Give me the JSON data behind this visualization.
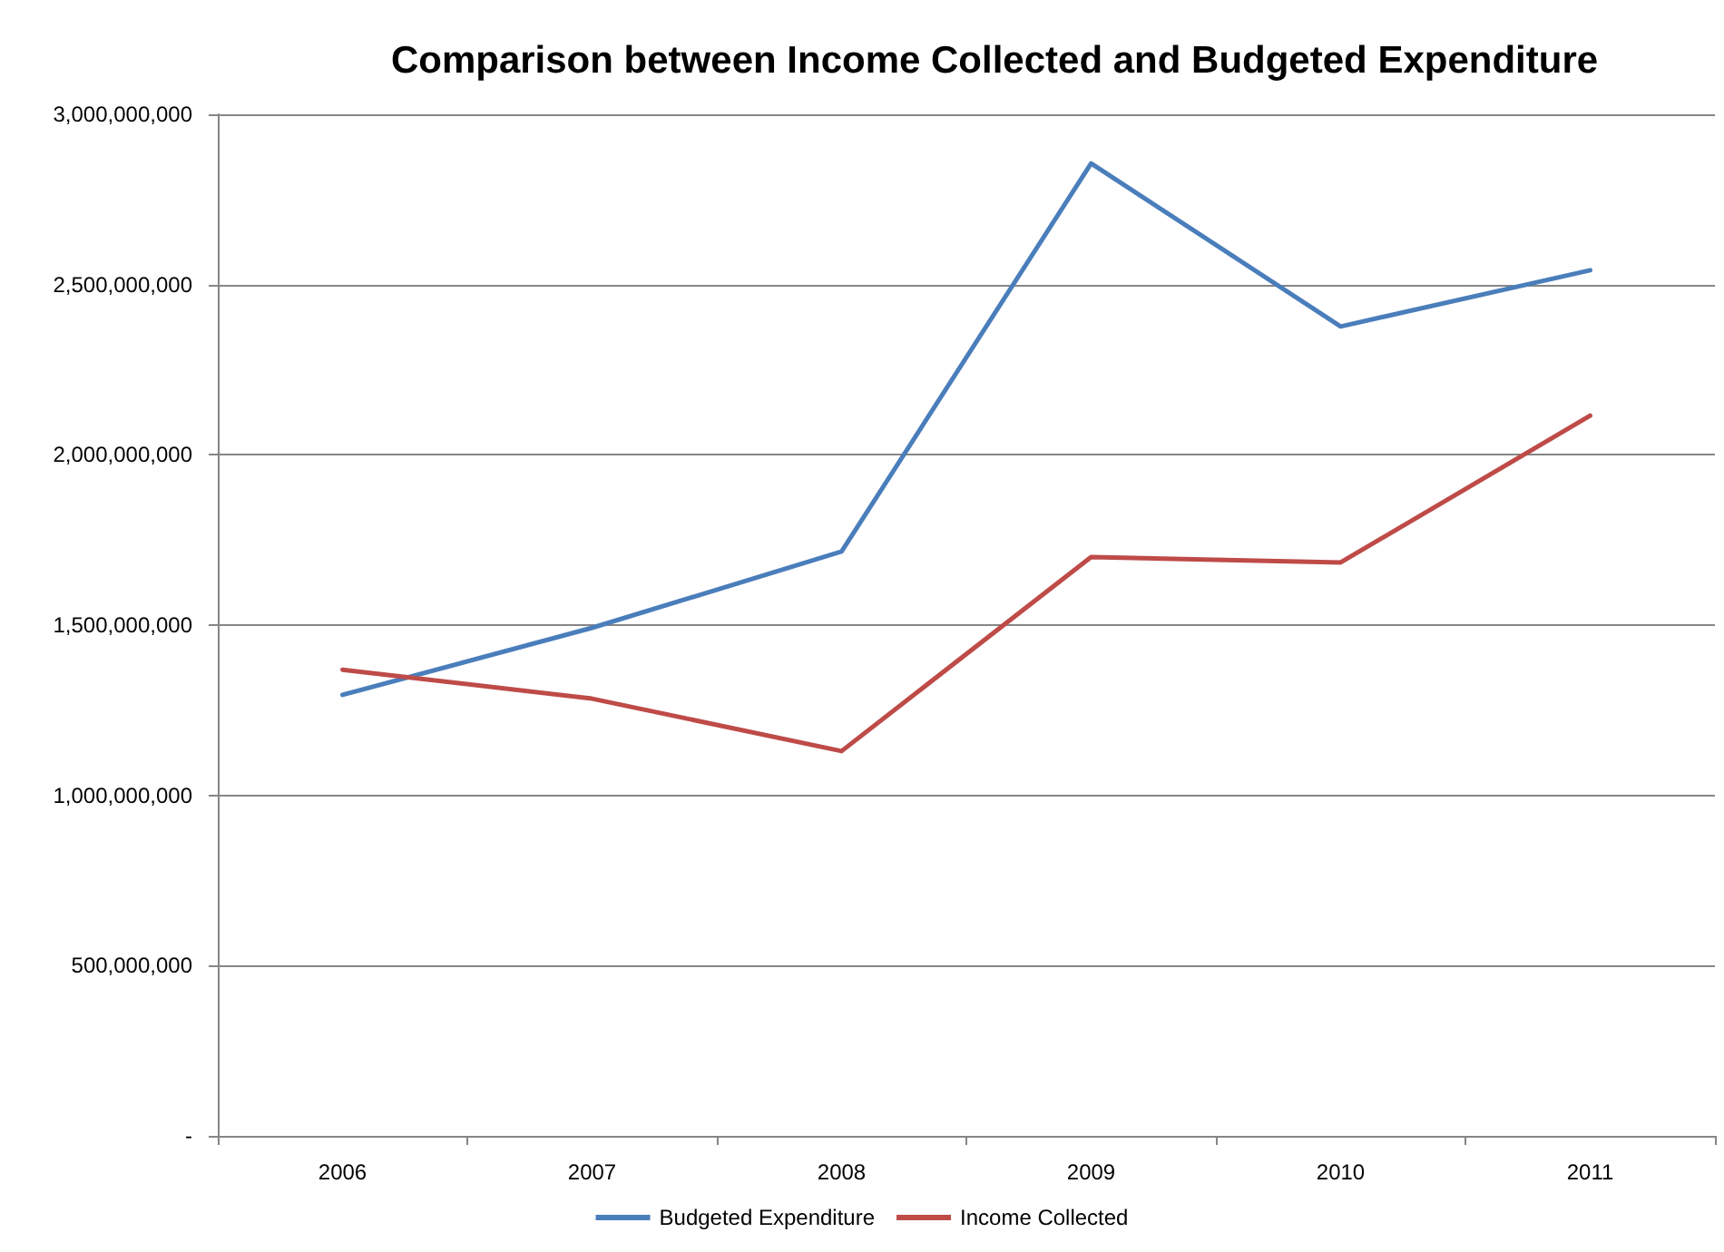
{
  "chart_data": {
    "type": "line",
    "title": "Comparison between Income Collected and Budgeted Expenditure",
    "categories": [
      "2006",
      "2007",
      "2008",
      "2009",
      "2010",
      "2011"
    ],
    "series": [
      {
        "name": "Budgeted Expenditure",
        "color": "#4a7ebb",
        "values": [
          1295000000,
          1492000000,
          1716000000,
          2856000000,
          2377000000,
          2542000000
        ]
      },
      {
        "name": "Income Collected",
        "color": "#be4b48",
        "values": [
          1369000000,
          1284000000,
          1130000000,
          1700000000,
          1684000000,
          2115000000
        ]
      }
    ],
    "ylim": [
      0,
      3000000000
    ],
    "yticks": [
      {
        "value": 0,
        "label": "-"
      },
      {
        "value": 500000000,
        "label": "500,000,000"
      },
      {
        "value": 1000000000,
        "label": "1,000,000,000"
      },
      {
        "value": 1500000000,
        "label": "1,500,000,000"
      },
      {
        "value": 2000000000,
        "label": "2,000,000,000"
      },
      {
        "value": 2500000000,
        "label": "2,500,000,000"
      },
      {
        "value": 3000000000,
        "label": "3,000,000,000"
      }
    ],
    "grid": "y",
    "legend": "bottom",
    "marker": "none",
    "line_style": "solid"
  }
}
